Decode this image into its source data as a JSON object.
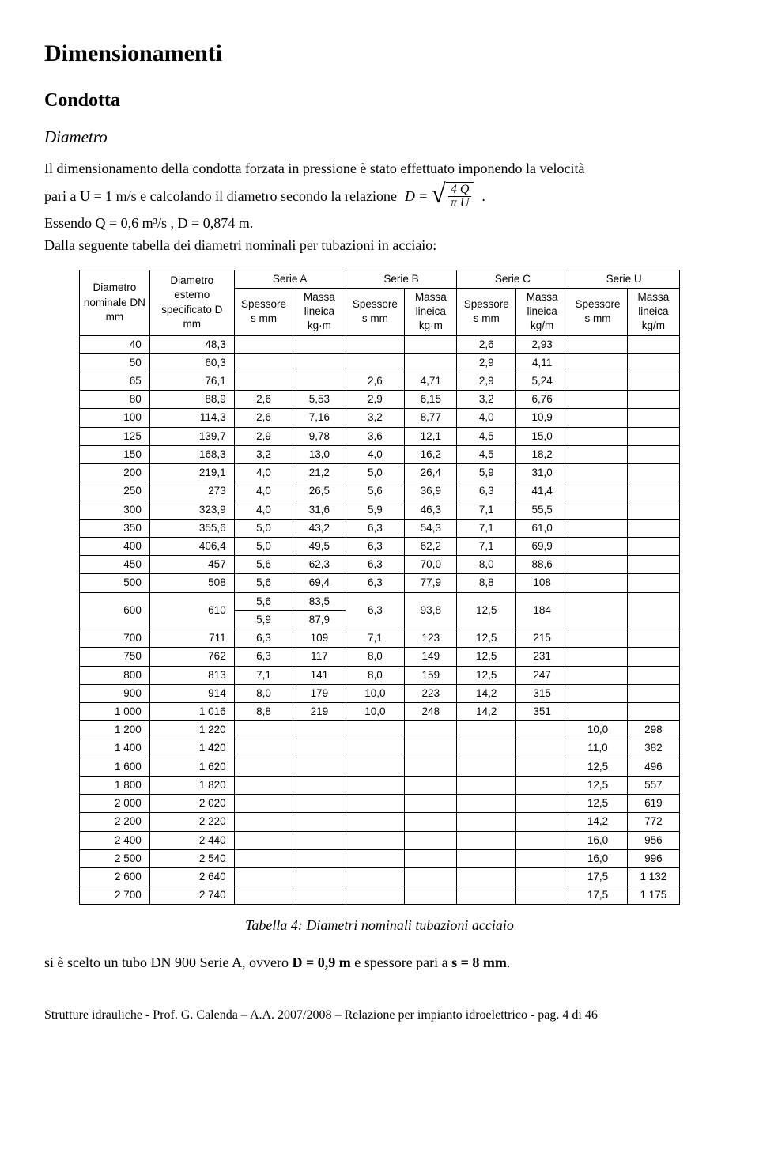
{
  "headings": {
    "h1": "Dimensionamenti",
    "h2": "Condotta",
    "h3": "Diametro"
  },
  "paragraphs": {
    "p1": "Il dimensionamento della condotta forzata in pressione è stato effettuato imponendo la velocità",
    "p2_before": "pari a U = 1 m/s e calcolando il diametro secondo la relazione",
    "p2_after": ".",
    "p3": "Essendo Q = 0,6 m³/s , D = 0,874 m.",
    "p4": "Dalla seguente tabella dei diametri nominali per tubazioni in acciaio:"
  },
  "formula": {
    "D": "D",
    "eq": "=",
    "num": "4 Q",
    "den": "π U"
  },
  "table": {
    "caption": "Tabella 4: Diametri nominali tubazioni acciaio",
    "header": {
      "dn": "Diametro nominale DN mm",
      "dext": "Diametro esterno specificato D mm",
      "serieA": "Serie A",
      "serieB": "Serie B",
      "serieC": "Serie C",
      "serieU": "Serie U",
      "spessore": "Spessore s mm",
      "massaA": "Massa lineica kg·m",
      "massaB": "Massa lineica kg·m",
      "massaC": "Massa lineica kg/m",
      "massaU": "Massa lineica kg/m"
    },
    "rows": [
      {
        "dn": "40",
        "d": "48,3",
        "a_s": "",
        "a_m": "",
        "b_s": "",
        "b_m": "",
        "c_s": "2,6",
        "c_m": "2,93",
        "u_s": "",
        "u_m": ""
      },
      {
        "dn": "50",
        "d": "60,3",
        "a_s": "",
        "a_m": "",
        "b_s": "",
        "b_m": "",
        "c_s": "2,9",
        "c_m": "4,11",
        "u_s": "",
        "u_m": ""
      },
      {
        "dn": "65",
        "d": "76,1",
        "a_s": "",
        "a_m": "",
        "b_s": "2,6",
        "b_m": "4,71",
        "c_s": "2,9",
        "c_m": "5,24",
        "u_s": "",
        "u_m": ""
      },
      {
        "dn": "80",
        "d": "88,9",
        "a_s": "2,6",
        "a_m": "5,53",
        "b_s": "2,9",
        "b_m": "6,15",
        "c_s": "3,2",
        "c_m": "6,76",
        "u_s": "",
        "u_m": ""
      },
      {
        "dn": "100",
        "d": "114,3",
        "a_s": "2,6",
        "a_m": "7,16",
        "b_s": "3,2",
        "b_m": "8,77",
        "c_s": "4,0",
        "c_m": "10,9",
        "u_s": "",
        "u_m": ""
      },
      {
        "dn": "125",
        "d": "139,7",
        "a_s": "2,9",
        "a_m": "9,78",
        "b_s": "3,6",
        "b_m": "12,1",
        "c_s": "4,5",
        "c_m": "15,0",
        "u_s": "",
        "u_m": ""
      },
      {
        "dn": "150",
        "d": "168,3",
        "a_s": "3,2",
        "a_m": "13,0",
        "b_s": "4,0",
        "b_m": "16,2",
        "c_s": "4,5",
        "c_m": "18,2",
        "u_s": "",
        "u_m": ""
      },
      {
        "dn": "200",
        "d": "219,1",
        "a_s": "4,0",
        "a_m": "21,2",
        "b_s": "5,0",
        "b_m": "26,4",
        "c_s": "5,9",
        "c_m": "31,0",
        "u_s": "",
        "u_m": ""
      },
      {
        "dn": "250",
        "d": "273",
        "a_s": "4,0",
        "a_m": "26,5",
        "b_s": "5,6",
        "b_m": "36,9",
        "c_s": "6,3",
        "c_m": "41,4",
        "u_s": "",
        "u_m": ""
      },
      {
        "dn": "300",
        "d": "323,9",
        "a_s": "4,0",
        "a_m": "31,6",
        "b_s": "5,9",
        "b_m": "46,3",
        "c_s": "7,1",
        "c_m": "55,5",
        "u_s": "",
        "u_m": ""
      },
      {
        "dn": "350",
        "d": "355,6",
        "a_s": "5,0",
        "a_m": "43,2",
        "b_s": "6,3",
        "b_m": "54,3",
        "c_s": "7,1",
        "c_m": "61,0",
        "u_s": "",
        "u_m": ""
      },
      {
        "dn": "400",
        "d": "406,4",
        "a_s": "5,0",
        "a_m": "49,5",
        "b_s": "6,3",
        "b_m": "62,2",
        "c_s": "7,1",
        "c_m": "69,9",
        "u_s": "",
        "u_m": ""
      },
      {
        "dn": "450",
        "d": "457",
        "a_s": "5,6",
        "a_m": "62,3",
        "b_s": "6,3",
        "b_m": "70,0",
        "c_s": "8,0",
        "c_m": "88,6",
        "u_s": "",
        "u_m": ""
      },
      {
        "dn": "500",
        "d": "508",
        "a_s": "5,6",
        "a_m": "69,4",
        "b_s": "6,3",
        "b_m": "77,9",
        "c_s": "8,8",
        "c_m": "108",
        "u_s": "",
        "u_m": ""
      },
      {
        "dn": "700",
        "d": "711",
        "a_s": "6,3",
        "a_m": "109",
        "b_s": "7,1",
        "b_m": "123",
        "c_s": "12,5",
        "c_m": "215",
        "u_s": "",
        "u_m": ""
      },
      {
        "dn": "750",
        "d": "762",
        "a_s": "6,3",
        "a_m": "117",
        "b_s": "8,0",
        "b_m": "149",
        "c_s": "12,5",
        "c_m": "231",
        "u_s": "",
        "u_m": ""
      },
      {
        "dn": "800",
        "d": "813",
        "a_s": "7,1",
        "a_m": "141",
        "b_s": "8,0",
        "b_m": "159",
        "c_s": "12,5",
        "c_m": "247",
        "u_s": "",
        "u_m": ""
      },
      {
        "dn": "900",
        "d": "914",
        "a_s": "8,0",
        "a_m": "179",
        "b_s": "10,0",
        "b_m": "223",
        "c_s": "14,2",
        "c_m": "315",
        "u_s": "",
        "u_m": ""
      },
      {
        "dn": "1 000",
        "d": "1 016",
        "a_s": "8,8",
        "a_m": "219",
        "b_s": "10,0",
        "b_m": "248",
        "c_s": "14,2",
        "c_m": "351",
        "u_s": "",
        "u_m": ""
      },
      {
        "dn": "1 200",
        "d": "1 220",
        "a_s": "",
        "a_m": "",
        "b_s": "",
        "b_m": "",
        "c_s": "",
        "c_m": "",
        "u_s": "10,0",
        "u_m": "298"
      },
      {
        "dn": "1 400",
        "d": "1 420",
        "a_s": "",
        "a_m": "",
        "b_s": "",
        "b_m": "",
        "c_s": "",
        "c_m": "",
        "u_s": "11,0",
        "u_m": "382"
      },
      {
        "dn": "1 600",
        "d": "1 620",
        "a_s": "",
        "a_m": "",
        "b_s": "",
        "b_m": "",
        "c_s": "",
        "c_m": "",
        "u_s": "12,5",
        "u_m": "496"
      },
      {
        "dn": "1 800",
        "d": "1 820",
        "a_s": "",
        "a_m": "",
        "b_s": "",
        "b_m": "",
        "c_s": "",
        "c_m": "",
        "u_s": "12,5",
        "u_m": "557"
      },
      {
        "dn": "2 000",
        "d": "2 020",
        "a_s": "",
        "a_m": "",
        "b_s": "",
        "b_m": "",
        "c_s": "",
        "c_m": "",
        "u_s": "12,5",
        "u_m": "619"
      },
      {
        "dn": "2 200",
        "d": "2 220",
        "a_s": "",
        "a_m": "",
        "b_s": "",
        "b_m": "",
        "c_s": "",
        "c_m": "",
        "u_s": "14,2",
        "u_m": "772"
      },
      {
        "dn": "2 400",
        "d": "2 440",
        "a_s": "",
        "a_m": "",
        "b_s": "",
        "b_m": "",
        "c_s": "",
        "c_m": "",
        "u_s": "16,0",
        "u_m": "956"
      },
      {
        "dn": "2 500",
        "d": "2 540",
        "a_s": "",
        "a_m": "",
        "b_s": "",
        "b_m": "",
        "c_s": "",
        "c_m": "",
        "u_s": "16,0",
        "u_m": "996"
      },
      {
        "dn": "2 600",
        "d": "2 640",
        "a_s": "",
        "a_m": "",
        "b_s": "",
        "b_m": "",
        "c_s": "",
        "c_m": "",
        "u_s": "17,5",
        "u_m": "1 132"
      },
      {
        "dn": "2 700",
        "d": "2 740",
        "a_s": "",
        "a_m": "",
        "b_s": "",
        "b_m": "",
        "c_s": "",
        "c_m": "",
        "u_s": "17,5",
        "u_m": "1 175"
      }
    ],
    "row600": {
      "dn": "600",
      "d": "610",
      "a_s1": "5,6",
      "a_m1": "83,5",
      "a_s2": "5,9",
      "a_m2": "87,9",
      "b_s": "6,3",
      "b_m": "93,8",
      "c_s": "12,5",
      "c_m": "184"
    }
  },
  "conclusion": {
    "before": "si è scelto un tubo DN 900 Serie A, ovvero ",
    "bold1": "D = 0,9 m",
    "mid": " e spessore pari a ",
    "bold2": "s = 8 mm",
    "after": "."
  },
  "footer": "Strutture idrauliche - Prof. G. Calenda – A.A. 2007/2008 – Relazione per impianto idroelettrico - pag. 4 di 46"
}
